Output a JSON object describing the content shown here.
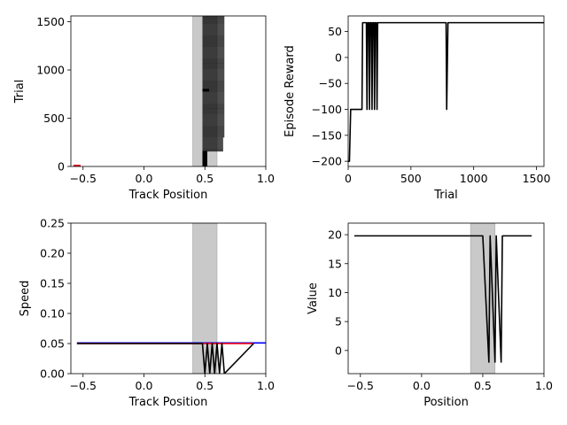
{
  "chart_data": [
    {
      "id": "p1",
      "type": "raster",
      "xlabel": "Track Position",
      "ylabel": "Trial",
      "xlim": [
        -0.6,
        1.0
      ],
      "ylim": [
        0,
        1560
      ],
      "xticks": [
        -0.5,
        0.0,
        0.5,
        1.0
      ],
      "xtick_labels": [
        "−0.5",
        "0.0",
        "0.5",
        "1.0"
      ],
      "yticks": [
        0,
        500,
        1000,
        1500
      ],
      "ytick_labels": [
        "0",
        "500",
        "1000",
        "1500"
      ],
      "shaded_region": [
        0.4,
        0.6
      ],
      "raster_x_range": [
        0.48,
        0.66
      ],
      "dense_block": {
        "x": [
          0.48,
          0.52
        ],
        "y": [
          0,
          160
        ]
      },
      "start_marker": {
        "x": -0.55,
        "y": 0
      },
      "grid": false
    },
    {
      "id": "p2",
      "type": "line",
      "xlabel": "Trial",
      "ylabel": "Episode Reward",
      "xlim": [
        0,
        1560
      ],
      "ylim": [
        -210,
        80
      ],
      "xticks": [
        0,
        500,
        1000,
        1500
      ],
      "xtick_labels": [
        "0",
        "500",
        "1000",
        "1500"
      ],
      "yticks": [
        -200,
        -150,
        -100,
        -50,
        0,
        50
      ],
      "ytick_labels": [
        "−200",
        "−150",
        "−100",
        "−50",
        "0",
        "50"
      ],
      "series": [
        {
          "color": "#000000",
          "x": [
            0,
            10,
            20,
            110,
            115,
            145,
            150,
            155,
            165,
            170,
            175,
            185,
            190,
            195,
            205,
            210,
            215,
            225,
            230,
            235,
            780,
            785,
            795,
            1560
          ],
          "y": [
            -200,
            -200,
            -100,
            -100,
            67,
            67,
            -100,
            67,
            67,
            -100,
            67,
            67,
            -100,
            67,
            67,
            -100,
            67,
            67,
            -100,
            67,
            67,
            -100,
            67,
            67
          ]
        }
      ],
      "grid": false
    },
    {
      "id": "p3",
      "type": "line",
      "xlabel": "Track Position",
      "ylabel": "Speed",
      "xlim": [
        -0.6,
        1.0
      ],
      "ylim": [
        0,
        0.25
      ],
      "xticks": [
        -0.5,
        0.0,
        0.5,
        1.0
      ],
      "xtick_labels": [
        "−0.5",
        "0.0",
        "0.5",
        "1.0"
      ],
      "yticks": [
        0.0,
        0.05,
        0.1,
        0.15,
        0.2,
        0.25
      ],
      "ytick_labels": [
        "0.00",
        "0.05",
        "0.10",
        "0.15",
        "0.20",
        "0.25"
      ],
      "shaded_region": [
        0.4,
        0.6
      ],
      "series": [
        {
          "color": "#0000ff",
          "x": [
            -0.55,
            1.0
          ],
          "y": [
            0.051,
            0.051
          ]
        },
        {
          "color": "#ff0000",
          "x": [
            -0.55,
            0.9
          ],
          "y": [
            0.05,
            0.05
          ]
        },
        {
          "color": "#000000",
          "x": [
            -0.55,
            0.48,
            0.5,
            0.52,
            0.54,
            0.56,
            0.58,
            0.6,
            0.62,
            0.64,
            0.66,
            0.9
          ],
          "y": [
            0.05,
            0.05,
            0.0,
            0.05,
            0.0,
            0.05,
            0.0,
            0.05,
            0.0,
            0.05,
            0.0,
            0.05
          ]
        }
      ],
      "grid": false
    },
    {
      "id": "p4",
      "type": "line",
      "xlabel": "Position",
      "ylabel": "Value",
      "xlim": [
        -0.6,
        1.0
      ],
      "ylim": [
        -4,
        22
      ],
      "xticks": [
        -0.5,
        0.0,
        0.5,
        1.0
      ],
      "xtick_labels": [
        "−0.5",
        "0.0",
        "0.5",
        "1.0"
      ],
      "yticks": [
        0,
        5,
        10,
        15,
        20
      ],
      "ytick_labels": [
        "0",
        "5",
        "10",
        "15",
        "20"
      ],
      "shaded_region": [
        0.4,
        0.6
      ],
      "series": [
        {
          "color": "#000000",
          "x": [
            -0.55,
            0.5,
            0.55,
            0.56,
            0.6,
            0.61,
            0.65,
            0.66,
            0.9
          ],
          "y": [
            19.8,
            19.8,
            -2,
            19.8,
            -2,
            19.8,
            -2,
            19.8,
            19.8
          ]
        }
      ],
      "grid": false
    }
  ]
}
